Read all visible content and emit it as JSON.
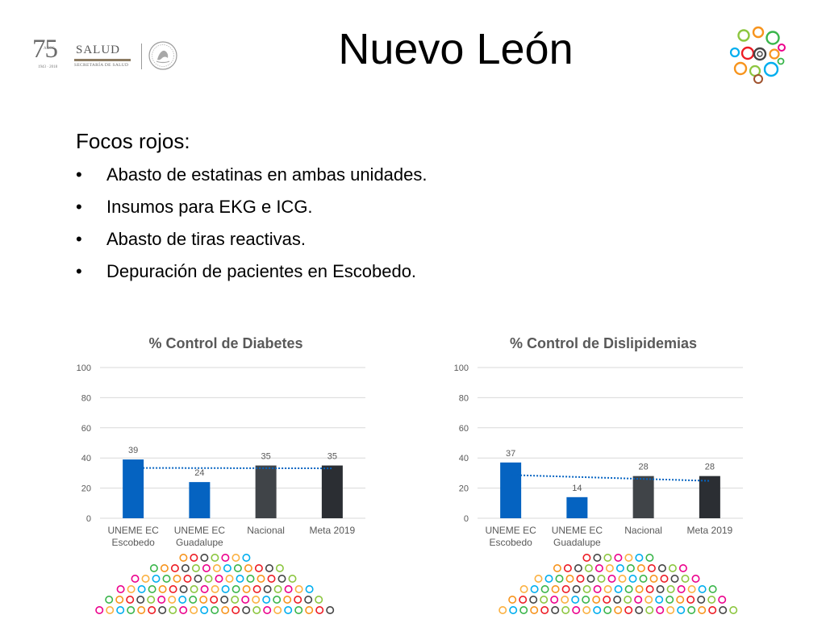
{
  "header": {
    "title": "Nuevo León",
    "logo_75": "75",
    "logo_75_sub": "AÑOS",
    "logo_75_years": "1943 · 2018",
    "logo_salud": "SALUD",
    "logo_salud_sub": "SECRETARÍA DE SALUD"
  },
  "focos": {
    "heading": "Focos rojos:",
    "bullet_char": "•",
    "items": [
      "Abasto de estatinas en ambas unidades.",
      "Insumos para EKG e ICG.",
      "Abasto de tiras reactivas.",
      "Depuración de pacientes en Escobedo."
    ]
  },
  "colors": {
    "bar_blue": "#0563c1",
    "bar_gray": "#404448",
    "bar_dark": "#2b2e33",
    "trendline": "#0563c1",
    "grid": "#d9d9d9",
    "axis_text": "#595959"
  },
  "chart_data": [
    {
      "type": "bar",
      "title": "% Control de Diabetes",
      "categories": [
        [
          "UNEME EC",
          "Escobedo"
        ],
        [
          "UNEME EC",
          "Guadalupe"
        ],
        [
          "Nacional"
        ],
        [
          "Meta 2019"
        ]
      ],
      "values": [
        39,
        24,
        35,
        35
      ],
      "bar_colors": [
        "#0563c1",
        "#0563c1",
        "#404448",
        "#2b2e33"
      ],
      "ylim": [
        0,
        100
      ],
      "yticks": [
        0,
        20,
        40,
        60,
        80,
        100
      ],
      "trendline": "linear, dotted",
      "grid": true,
      "legend": "none"
    },
    {
      "type": "bar",
      "title": "% Control de Dislipidemias",
      "categories": [
        [
          "UNEME EC",
          "Escobedo"
        ],
        [
          "UNEME EC",
          "Guadalupe"
        ],
        [
          "Nacional"
        ],
        [
          "Meta 2019"
        ]
      ],
      "values": [
        37,
        14,
        28,
        28
      ],
      "bar_colors": [
        "#0563c1",
        "#0563c1",
        "#404448",
        "#2b2e33"
      ],
      "ylim": [
        0,
        100
      ],
      "yticks": [
        0,
        20,
        40,
        60,
        80,
        100
      ],
      "trendline": "linear, dotted",
      "grid": true,
      "legend": "none"
    }
  ]
}
